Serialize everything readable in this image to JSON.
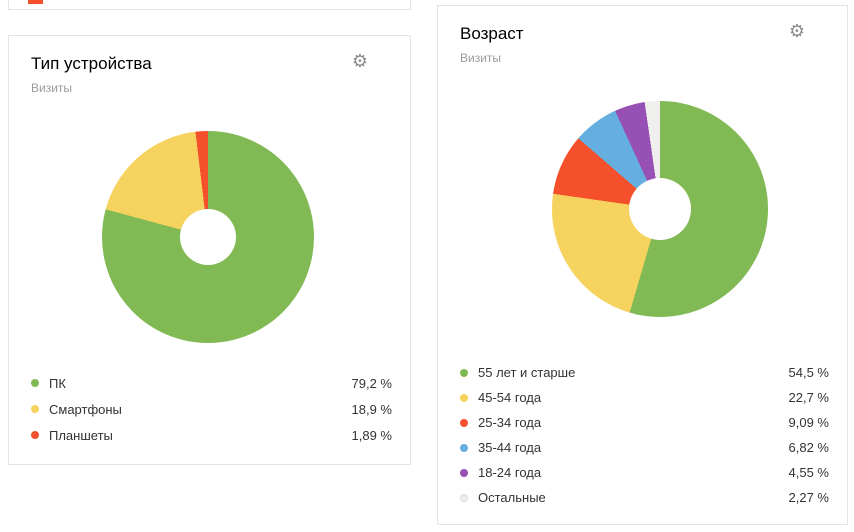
{
  "icons": {
    "gear_glyph": "⚙"
  },
  "chart_data": [
    {
      "type": "pie",
      "title": "Тип устройства",
      "subtitle": "Визиты",
      "donut": true,
      "legend_position": "bottom",
      "slices": [
        {
          "label": "ПК",
          "value": 79.2,
          "display": "79,2 %",
          "color": "#81ba55"
        },
        {
          "label": "Смартфоны",
          "value": 18.9,
          "display": "18,9 %",
          "color": "#f6d35e"
        },
        {
          "label": "Планшеты",
          "value": 1.89,
          "display": "1,89 %",
          "color": "#f4502c"
        }
      ]
    },
    {
      "type": "pie",
      "title": "Возраст",
      "subtitle": "Визиты",
      "donut": true,
      "legend_position": "bottom",
      "slices": [
        {
          "label": "55 лет и старше",
          "value": 54.5,
          "display": "54,5 %",
          "color": "#81ba55"
        },
        {
          "label": "45-54 года",
          "value": 22.7,
          "display": "22,7 %",
          "color": "#f6d35e"
        },
        {
          "label": "25-34 года",
          "value": 9.09,
          "display": "9,09 %",
          "color": "#f4502c"
        },
        {
          "label": "35-44 года",
          "value": 6.82,
          "display": "6,82 %",
          "color": "#64aee0"
        },
        {
          "label": "18-24 года",
          "value": 4.55,
          "display": "4,55 %",
          "color": "#9751b4"
        },
        {
          "label": "Остальные",
          "value": 2.27,
          "display": "2,27 %",
          "color": "#efefed",
          "border": "#ddddd9"
        }
      ]
    }
  ]
}
